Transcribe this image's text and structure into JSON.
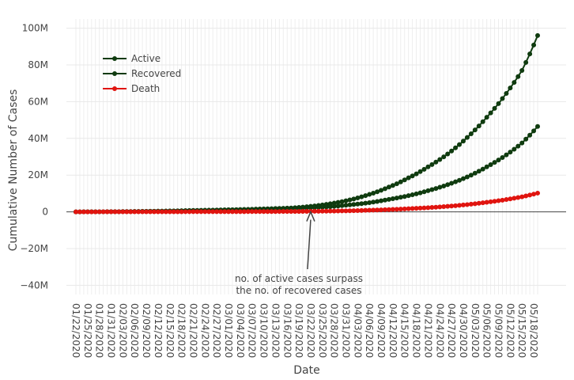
{
  "chart_data": {
    "type": "line",
    "title": "",
    "xlabel": "Date",
    "ylabel": "Cumulative Number of Cases",
    "ylim": [
      -45000000,
      105000000
    ],
    "y_ticks": [
      {
        "value": 100000000,
        "label": "100M"
      },
      {
        "value": 80000000,
        "label": "80M"
      },
      {
        "value": 60000000,
        "label": "60M"
      },
      {
        "value": 40000000,
        "label": "40M"
      },
      {
        "value": 20000000,
        "label": "20M"
      },
      {
        "value": 0,
        "label": "0"
      },
      {
        "value": -20000000,
        "label": "−20M"
      },
      {
        "value": -40000000,
        "label": "−40M"
      }
    ],
    "x_start": "2020-01-22",
    "x_end": "2020-05-19",
    "x_tick_labels": [
      "01/22/2020",
      "01/25/2020",
      "01/28/2020",
      "01/31/2020",
      "02/03/2020",
      "02/06/2020",
      "02/09/2020",
      "02/12/2020",
      "02/15/2020",
      "02/18/2020",
      "02/21/2020",
      "02/24/2020",
      "02/27/2020",
      "03/01/2020",
      "03/04/2020",
      "03/07/2020",
      "03/10/2020",
      "03/13/2020",
      "03/16/2020",
      "03/19/2020",
      "03/22/2020",
      "03/25/2020",
      "03/28/2020",
      "03/31/2020",
      "04/03/2020",
      "04/06/2020",
      "04/09/2020",
      "04/12/2020",
      "04/15/2020",
      "04/18/2020",
      "04/21/2020",
      "04/24/2020",
      "04/27/2020",
      "04/30/2020",
      "05/03/2020",
      "05/06/2020",
      "05/09/2020",
      "05/12/2020",
      "05/15/2020",
      "05/18/2020"
    ],
    "grid": true,
    "legend_position": "top-left",
    "series": [
      {
        "name": "Active",
        "color": "#0f3b0f",
        "points": [
          [
            "2020-01-22",
            0
          ],
          [
            "2020-02-01",
            100000
          ],
          [
            "2020-02-10",
            300000
          ],
          [
            "2020-02-20",
            700000
          ],
          [
            "2020-03-01",
            1100000
          ],
          [
            "2020-03-10",
            1600000
          ],
          [
            "2020-03-17",
            2100000
          ],
          [
            "2020-03-22",
            3000000
          ],
          [
            "2020-03-27",
            4400000
          ],
          [
            "2020-04-01",
            6500000
          ],
          [
            "2020-04-06",
            9500000
          ],
          [
            "2020-04-11",
            13500000
          ],
          [
            "2020-04-16",
            18500000
          ],
          [
            "2020-04-21",
            24500000
          ],
          [
            "2020-04-26",
            31500000
          ],
          [
            "2020-05-01",
            40500000
          ],
          [
            "2020-05-06",
            51500000
          ],
          [
            "2020-05-11",
            64500000
          ],
          [
            "2020-05-15",
            77000000
          ],
          [
            "2020-05-19",
            96000000
          ]
        ]
      },
      {
        "name": "Recovered",
        "color": "#0f3b0f",
        "points": [
          [
            "2020-01-22",
            0
          ],
          [
            "2020-02-01",
            100000
          ],
          [
            "2020-02-10",
            300000
          ],
          [
            "2020-02-20",
            700000
          ],
          [
            "2020-03-01",
            1100000
          ],
          [
            "2020-03-10",
            1500000
          ],
          [
            "2020-03-17",
            1900000
          ],
          [
            "2020-03-22",
            2300000
          ],
          [
            "2020-03-27",
            2800000
          ],
          [
            "2020-04-01",
            3800000
          ],
          [
            "2020-04-06",
            5000000
          ],
          [
            "2020-04-11",
            6800000
          ],
          [
            "2020-04-16",
            8800000
          ],
          [
            "2020-04-21",
            11500000
          ],
          [
            "2020-04-26",
            14800000
          ],
          [
            "2020-05-01",
            19000000
          ],
          [
            "2020-05-06",
            24500000
          ],
          [
            "2020-05-11",
            31000000
          ],
          [
            "2020-05-15",
            37500000
          ],
          [
            "2020-05-19",
            46500000
          ]
        ]
      },
      {
        "name": "Death",
        "color": "#e0140f",
        "points": [
          [
            "2020-01-22",
            0
          ],
          [
            "2020-02-10",
            50000
          ],
          [
            "2020-03-01",
            100000
          ],
          [
            "2020-03-17",
            200000
          ],
          [
            "2020-03-27",
            400000
          ],
          [
            "2020-04-06",
            900000
          ],
          [
            "2020-04-16",
            1700000
          ],
          [
            "2020-04-26",
            3000000
          ],
          [
            "2020-05-06",
            5200000
          ],
          [
            "2020-05-11",
            6700000
          ],
          [
            "2020-05-15",
            8200000
          ],
          [
            "2020-05-19",
            10200000
          ]
        ]
      }
    ],
    "annotations": [
      {
        "lines": [
          "no. of active cases surpass",
          "the no. of recovered cases"
        ],
        "x": "2020-03-22",
        "y": 0
      }
    ]
  }
}
